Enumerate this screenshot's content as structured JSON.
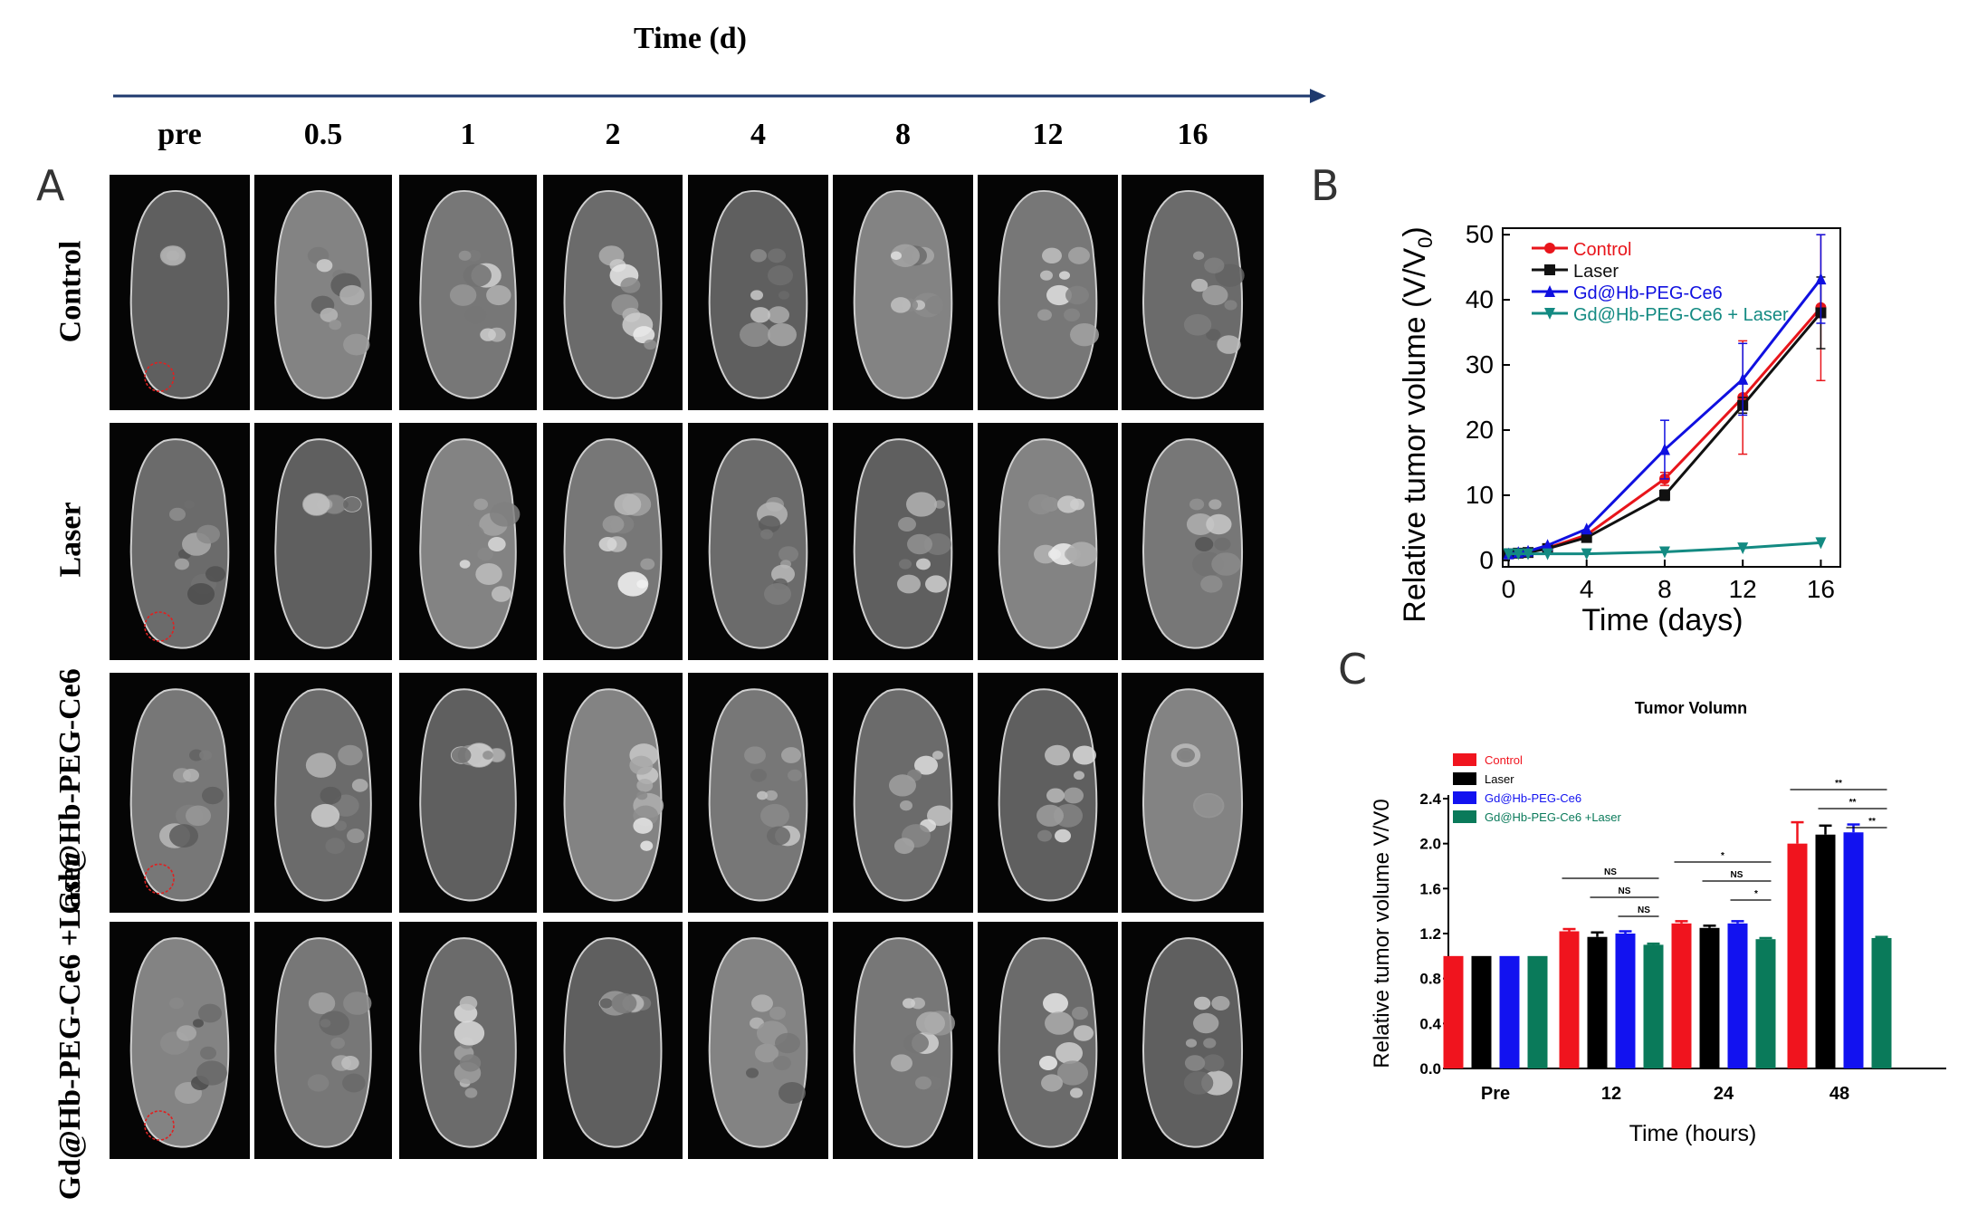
{
  "figure": {
    "time_axis_title": "Time (d)",
    "columns": [
      "pre",
      "0.5",
      "1",
      "2",
      "4",
      "8",
      "12",
      "16"
    ],
    "rows": [
      "Control",
      "Laser",
      "Gd@Hb-PEG-Ce6",
      "Gd@Hb-PEG-Ce6 +Laser"
    ],
    "panel_labels": {
      "a": "A",
      "b": "B",
      "c": "C"
    }
  },
  "chart_data": [
    {
      "id": "B",
      "type": "line",
      "title": "",
      "xlabel": "Time (days)",
      "ylabel": "Relative tumor volume (V/V",
      "ylabel_sub": "0",
      "ylabel_close": ")",
      "x": [
        0,
        0.5,
        1,
        2,
        4,
        8,
        12,
        16
      ],
      "xlim": [
        -0.3,
        17
      ],
      "ylim": [
        -1,
        51
      ],
      "xticks": [
        0,
        4,
        8,
        12,
        16
      ],
      "yticks": [
        0,
        10,
        20,
        30,
        40,
        50
      ],
      "legend_position": "top-left",
      "series": [
        {
          "name": "Control",
          "color": "#e8151b",
          "marker": "circle",
          "values": [
            1,
            1.1,
            1.2,
            1.9,
            3.9,
            12.5,
            25.0,
            38.8
          ],
          "errors": [
            0.1,
            0.1,
            0.1,
            0.2,
            0.3,
            1.0,
            8.7,
            11.2
          ]
        },
        {
          "name": "Laser",
          "color": "#111111",
          "marker": "square",
          "values": [
            1,
            1.1,
            1.2,
            1.8,
            3.5,
            10.0,
            23.8,
            38.0
          ],
          "errors": [
            0.1,
            0.1,
            0.1,
            0.2,
            0.3,
            0.8,
            1.2,
            5.5
          ]
        },
        {
          "name": "Gd@Hb-PEG-Ce6",
          "color": "#1010e0",
          "marker": "triangle-up",
          "values": [
            1,
            1.2,
            1.4,
            2.3,
            4.8,
            17.0,
            27.8,
            43.2
          ],
          "errors": [
            0.1,
            0.1,
            0.1,
            0.3,
            0.4,
            4.5,
            5.5,
            6.8
          ]
        },
        {
          "name": "Gd@Hb-PEG-Ce6 + Laser",
          "color": "#138a82",
          "marker": "triangle-down",
          "values": [
            1,
            1.0,
            1.0,
            1.0,
            1.0,
            1.3,
            1.9,
            2.7
          ],
          "errors": [
            0.05,
            0.05,
            0.05,
            0.05,
            0.05,
            0.1,
            0.1,
            0.15
          ]
        }
      ]
    },
    {
      "id": "C",
      "type": "bar",
      "title": "Tumor Volumn",
      "xlabel": "Time (hours)",
      "ylabel": "Relative tumor volume V/V0",
      "categories": [
        "Pre",
        "12",
        "24",
        "48"
      ],
      "ylim": [
        0,
        2.4
      ],
      "yticks": [
        "0.0",
        "0.4",
        "0.8",
        "1.2",
        "1.6",
        "2.0",
        "2.4"
      ],
      "legend_position": "top-left",
      "series": [
        {
          "name": "Control",
          "color": "#f0141e",
          "values": [
            1.0,
            1.22,
            1.29,
            2.0
          ],
          "errors": [
            0.0,
            0.02,
            0.02,
            0.19
          ]
        },
        {
          "name": "Laser",
          "color": "#000000",
          "values": [
            1.0,
            1.17,
            1.25,
            2.08
          ],
          "errors": [
            0.0,
            0.04,
            0.02,
            0.08
          ]
        },
        {
          "name": "Gd@Hb-PEG-Ce6",
          "color": "#1212f0",
          "values": [
            1.0,
            1.2,
            1.29,
            2.1
          ],
          "errors": [
            0.0,
            0.02,
            0.02,
            0.07
          ]
        },
        {
          "name": "Gd@Hb-PEG-Ce6 +Laser",
          "color": "#0a7a5a",
          "values": [
            1.0,
            1.1,
            1.15,
            1.16
          ],
          "errors": [
            0.0,
            0.01,
            0.01,
            0.01
          ]
        }
      ],
      "significance": [
        {
          "category": 1,
          "from": 0,
          "to": 3,
          "label": "NS"
        },
        {
          "category": 1,
          "from": 1,
          "to": 3,
          "label": "NS"
        },
        {
          "category": 1,
          "from": 2,
          "to": 3,
          "label": "NS"
        },
        {
          "category": 2,
          "from": 0,
          "to": 3,
          "label": "*"
        },
        {
          "category": 2,
          "from": 1,
          "to": 3,
          "label": "NS"
        },
        {
          "category": 2,
          "from": 2,
          "to": 3,
          "label": "*"
        },
        {
          "category": 3,
          "from": 0,
          "to": 3,
          "label": "**"
        },
        {
          "category": 3,
          "from": 1,
          "to": 3,
          "label": "**"
        },
        {
          "category": 3,
          "from": 2,
          "to": 3,
          "label": "**"
        }
      ]
    }
  ]
}
